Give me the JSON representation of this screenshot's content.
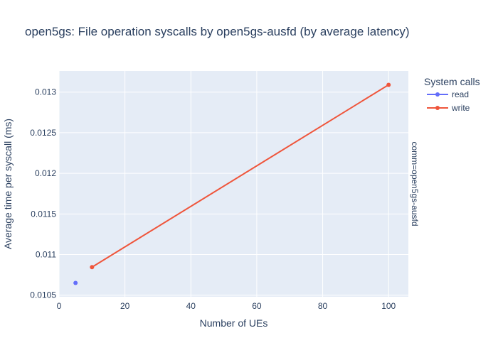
{
  "chart_data": {
    "type": "line",
    "title": "open5gs: File operation syscalls by open5gs-ausfd (by average latency)",
    "xlabel": "Number of UEs",
    "ylabel": "Average time per syscall (ms)",
    "facet_label": "comm=open5gs-ausfd",
    "xlim": [
      0,
      106
    ],
    "ylim": [
      0.01048,
      0.01326
    ],
    "x_ticks": [
      0,
      20,
      40,
      60,
      80,
      100
    ],
    "x_tick_labels": [
      "0",
      "20",
      "40",
      "60",
      "80",
      "100"
    ],
    "y_ticks": [
      0.0105,
      0.011,
      0.0115,
      0.012,
      0.0125,
      0.013
    ],
    "y_tick_labels": [
      "0.0105",
      "0.011",
      "0.0115",
      "0.012",
      "0.0125",
      "0.013"
    ],
    "grid": true,
    "plot_background": "#e5ecf6",
    "legend": {
      "title": "System calls",
      "placement": "top-right outside"
    },
    "series": [
      {
        "name": "read",
        "color": "#636efa",
        "x": [
          5
        ],
        "y": [
          0.01065
        ]
      },
      {
        "name": "write",
        "color": "#ef553b",
        "x": [
          10,
          100
        ],
        "y": [
          0.010845,
          0.01309
        ]
      }
    ]
  }
}
